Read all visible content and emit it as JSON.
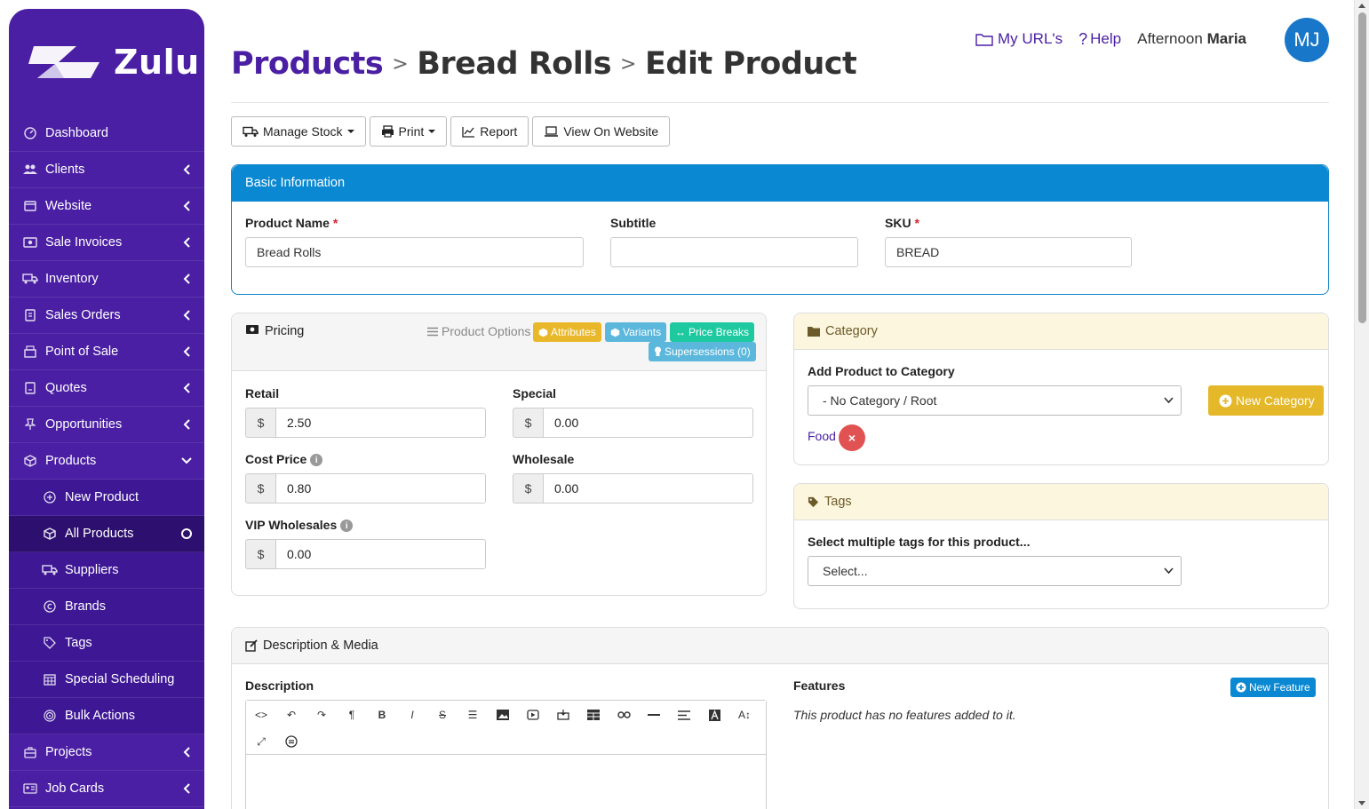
{
  "brand": {
    "name": "Zulu"
  },
  "sidebar": {
    "items": [
      {
        "label": "Dashboard",
        "icon": "dashboard-icon"
      },
      {
        "label": "Clients",
        "icon": "users-icon"
      },
      {
        "label": "Website",
        "icon": "browser-icon"
      },
      {
        "label": "Sale Invoices",
        "icon": "money-icon"
      },
      {
        "label": "Inventory",
        "icon": "truck-icon"
      },
      {
        "label": "Sales Orders",
        "icon": "document-icon"
      },
      {
        "label": "Point of Sale",
        "icon": "register-icon"
      },
      {
        "label": "Quotes",
        "icon": "quote-icon"
      },
      {
        "label": "Opportunities",
        "icon": "pin-icon"
      },
      {
        "label": "Products",
        "icon": "box-icon"
      }
    ],
    "sub_items": [
      {
        "label": "New Product",
        "icon": "plus-circle-icon"
      },
      {
        "label": "All Products",
        "icon": "box-icon"
      },
      {
        "label": "Suppliers",
        "icon": "truck-icon"
      },
      {
        "label": "Brands",
        "icon": "copyright-icon"
      },
      {
        "label": "Tags",
        "icon": "tag-icon"
      },
      {
        "label": "Special Scheduling",
        "icon": "calendar-icon"
      },
      {
        "label": "Bulk Actions",
        "icon": "target-icon"
      }
    ],
    "bottom_items": [
      {
        "label": "Projects",
        "icon": "briefcase-icon"
      },
      {
        "label": "Job Cards",
        "icon": "id-card-icon"
      }
    ]
  },
  "topbar": {
    "my_urls": "My URL's",
    "help": "Help",
    "greeting": "Afternoon",
    "user_name": "Maria",
    "avatar_initials": "MJ"
  },
  "breadcrumb": {
    "level1": "Products",
    "level2": "Bread Rolls",
    "level3": "Edit Product"
  },
  "toolbar": {
    "manage_stock": "Manage Stock",
    "print": "Print",
    "report": "Report",
    "view_on_website": "View On Website"
  },
  "basic_info": {
    "title": "Basic Information",
    "product_name_label": "Product Name",
    "product_name_value": "Bread Rolls",
    "subtitle_label": "Subtitle",
    "subtitle_value": "",
    "sku_label": "SKU",
    "sku_value": "BREAD",
    "required_mark": "*"
  },
  "pricing": {
    "title": "Pricing",
    "product_options_label": "Product Options",
    "badges": {
      "attributes": "Attributes",
      "variants": "Variants",
      "price_breaks": "Price Breaks",
      "supersessions": "Supersessions (0)"
    },
    "currency": "$",
    "retail_label": "Retail",
    "retail_value": "2.50",
    "special_label": "Special",
    "special_value": "0.00",
    "cost_label": "Cost Price",
    "cost_value": "0.80",
    "wholesale_label": "Wholesale",
    "wholesale_value": "0.00",
    "vip_label": "VIP Wholesales",
    "vip_value": "0.00",
    "info_glyph": "i"
  },
  "category": {
    "title": "Category",
    "add_label": "Add Product to Category",
    "selected": "- No Category / Root",
    "new_button": "New Category",
    "assigned": "Food",
    "remove_glyph": "×"
  },
  "tags": {
    "title": "Tags",
    "label": "Select multiple tags for this product...",
    "placeholder": "Select..."
  },
  "description": {
    "title": "Description & Media",
    "description_label": "Description",
    "features_label": "Features",
    "new_feature": "New Feature",
    "no_features": "This product has no features added to it."
  },
  "colors": {
    "brand_purple": "#4a1fa3",
    "header_blue": "#0a88d1",
    "warning_yellow": "#e5b82a",
    "danger_red": "#e15252",
    "teal": "#1fc9a0",
    "info_cyan": "#5bc0de"
  }
}
